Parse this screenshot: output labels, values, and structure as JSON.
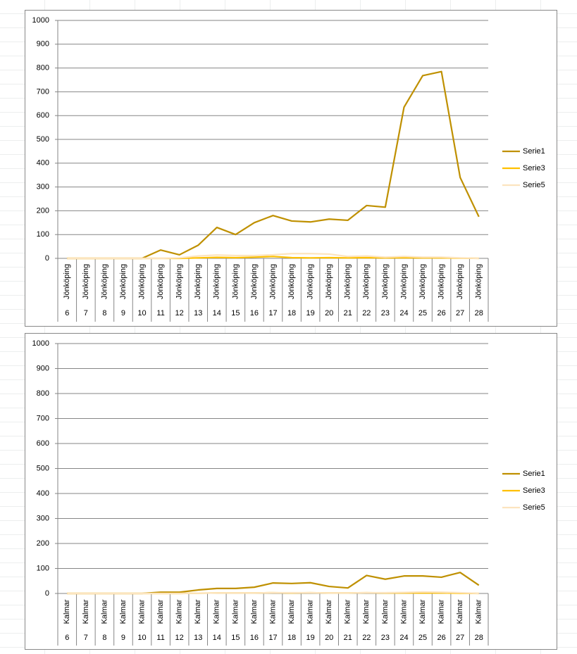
{
  "chart_data": [
    {
      "type": "line",
      "categories": [
        "6",
        "7",
        "8",
        "9",
        "10",
        "11",
        "12",
        "13",
        "14",
        "15",
        "16",
        "17",
        "18",
        "19",
        "20",
        "21",
        "22",
        "23",
        "24",
        "25",
        "26",
        "27",
        "28"
      ],
      "category_groups": [
        "Jönköping",
        "Jönköping",
        "Jönköping",
        "Jönköping",
        "Jönköping",
        "Jönköping",
        "Jönköping",
        "Jönköping",
        "Jönköping",
        "Jönköping",
        "Jönköping",
        "Jönköping",
        "Jönköping",
        "Jönköping",
        "Jönköping",
        "Jönköping",
        "Jönköping",
        "Jönköping",
        "Jönköping",
        "Jönköping",
        "Jönköping",
        "Jönköping",
        "Jönköping"
      ],
      "ylim": [
        0,
        1000
      ],
      "yticks": [
        0,
        100,
        200,
        300,
        400,
        500,
        600,
        700,
        800,
        900,
        1000
      ],
      "grid": true,
      "legend": "right",
      "series": [
        {
          "name": "Serie1",
          "color": "#bf9000",
          "values": [
            0,
            0,
            0,
            0,
            0,
            35,
            15,
            55,
            130,
            100,
            150,
            180,
            157,
            153,
            165,
            160,
            222,
            215,
            635,
            768,
            785,
            340,
            175
          ]
        },
        {
          "name": "Serie3",
          "color": "#ffc000",
          "values": [
            0,
            0,
            0,
            0,
            0,
            0,
            0,
            2,
            4,
            3,
            5,
            8,
            3,
            2,
            3,
            2,
            3,
            2,
            3,
            2,
            2,
            1,
            0
          ]
        },
        {
          "name": "Serie5",
          "color": "#fce4bf",
          "values": [
            0,
            0,
            0,
            0,
            0,
            0,
            2,
            10,
            14,
            12,
            12,
            15,
            20,
            20,
            18,
            8,
            10,
            5,
            8,
            5,
            5,
            2,
            0
          ]
        }
      ]
    },
    {
      "type": "line",
      "categories": [
        "6",
        "7",
        "8",
        "9",
        "10",
        "11",
        "12",
        "13",
        "14",
        "15",
        "16",
        "17",
        "18",
        "19",
        "20",
        "21",
        "22",
        "23",
        "24",
        "25",
        "26",
        "27",
        "28"
      ],
      "category_groups": [
        "Kalmar",
        "Kalmar",
        "Kalmar",
        "Kalmar",
        "Kalmar",
        "Kalmar",
        "Kalmar",
        "Kalmar",
        "Kalmar",
        "Kalmar",
        "Kalmar",
        "Kalmar",
        "Kalmar",
        "Kalmar",
        "Kalmar",
        "Kalmar",
        "Kalmar",
        "Kalmar",
        "Kalmar",
        "Kalmar",
        "Kalmar",
        "Kalmar",
        "Kalmar"
      ],
      "ylim": [
        0,
        1000
      ],
      "yticks": [
        0,
        100,
        200,
        300,
        400,
        500,
        600,
        700,
        800,
        900,
        1000
      ],
      "grid": true,
      "legend": "right",
      "series": [
        {
          "name": "Serie1",
          "color": "#bf9000",
          "values": [
            0,
            0,
            0,
            0,
            0,
            5,
            5,
            14,
            20,
            20,
            25,
            42,
            40,
            43,
            28,
            22,
            72,
            57,
            70,
            70,
            65,
            84,
            33
          ]
        },
        {
          "name": "Serie3",
          "color": "#ffc000",
          "values": [
            0,
            0,
            0,
            0,
            0,
            0,
            0,
            1,
            2,
            2,
            2,
            3,
            2,
            3,
            2,
            2,
            3,
            2,
            2,
            2,
            2,
            1,
            0
          ]
        },
        {
          "name": "Serie5",
          "color": "#fce4bf",
          "values": [
            0,
            0,
            0,
            0,
            0,
            0,
            0,
            1,
            2,
            2,
            2,
            3,
            3,
            3,
            2,
            2,
            3,
            3,
            4,
            6,
            5,
            3,
            0
          ]
        }
      ]
    }
  ]
}
